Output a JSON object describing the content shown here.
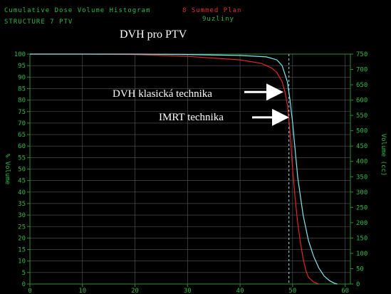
{
  "header": {
    "line1_left": "Cumulative Dose Volume Histogram",
    "line1_right": "8 Summed Plan",
    "line2_left": "STRUCTURE  7 PTV",
    "line2_right": "9uzliny"
  },
  "colors": {
    "background": "#000000",
    "grid": "#5a5a5a",
    "axis": "#2f8f2f",
    "tick_text": "#2fb84a",
    "header_text": "#2fb84a",
    "header_accent": "#e03030",
    "series_classic": "#e02828",
    "series_imrt": "#7fe8f0",
    "marker": "#9adfe8",
    "annotation": "#ffffff"
  },
  "chart_data": {
    "type": "line",
    "title": "DVH pro PTV",
    "xlabel": "",
    "ylabel": "% Volume",
    "y2label": "Volume (cc)",
    "xlim": [
      0,
      61
    ],
    "ylim": [
      0,
      100
    ],
    "y2lim": [
      0,
      750
    ],
    "xticks": [
      "0",
      "10",
      "20",
      "30",
      "40",
      "50",
      "60"
    ],
    "xtick_values": [
      0,
      10,
      20,
      30,
      40,
      50,
      60
    ],
    "yticks": [
      "0",
      "5",
      "10",
      "15",
      "20",
      "25",
      "30",
      "35",
      "40",
      "45",
      "50",
      "55",
      "60",
      "65",
      "70",
      "75",
      "80",
      "85",
      "90",
      "95",
      "100"
    ],
    "ytick_values": [
      0,
      5,
      10,
      15,
      20,
      25,
      30,
      35,
      40,
      45,
      50,
      55,
      60,
      65,
      70,
      75,
      80,
      85,
      90,
      95,
      100
    ],
    "y2ticks": [
      "0",
      "50",
      "100",
      "150",
      "200",
      "250",
      "300",
      "350",
      "400",
      "450",
      "500",
      "550",
      "600",
      "650",
      "700",
      "750"
    ],
    "y2tick_values": [
      0,
      50,
      100,
      150,
      200,
      250,
      300,
      350,
      400,
      450,
      500,
      550,
      600,
      650,
      700,
      750
    ],
    "grid": true,
    "marker_line_x": 49.3,
    "series": [
      {
        "key": "classic",
        "x": [
          0,
          10,
          20,
          30,
          40,
          44,
          46,
          47,
          48,
          48.5,
          49,
          49.5,
          50,
          50.5,
          51,
          51.5,
          52,
          52.5,
          53,
          54,
          55
        ],
        "y": [
          100,
          100,
          99.8,
          99,
          97.5,
          96,
          94,
          92,
          88,
          84,
          78,
          66,
          50,
          37,
          26,
          18,
          11,
          6,
          3,
          0.8,
          0
        ]
      },
      {
        "key": "imrt",
        "x": [
          0,
          10,
          20,
          30,
          40,
          45,
          47,
          48,
          49,
          49.5,
          50,
          50.5,
          51,
          52,
          53,
          54,
          55,
          56,
          57,
          58,
          58.5
        ],
        "y": [
          100,
          100,
          100,
          99.8,
          99.4,
          98.8,
          97.5,
          95,
          88,
          80,
          70,
          58,
          46,
          30,
          19,
          12,
          7,
          3.5,
          1.5,
          0.3,
          0
        ]
      }
    ],
    "annotations": [
      {
        "text": "DVH klasická technika",
        "arrow_to": [
          49.2,
          83.5
        ]
      },
      {
        "text": "IMRT technika",
        "arrow_to": [
          50.0,
          72.5
        ]
      }
    ]
  }
}
